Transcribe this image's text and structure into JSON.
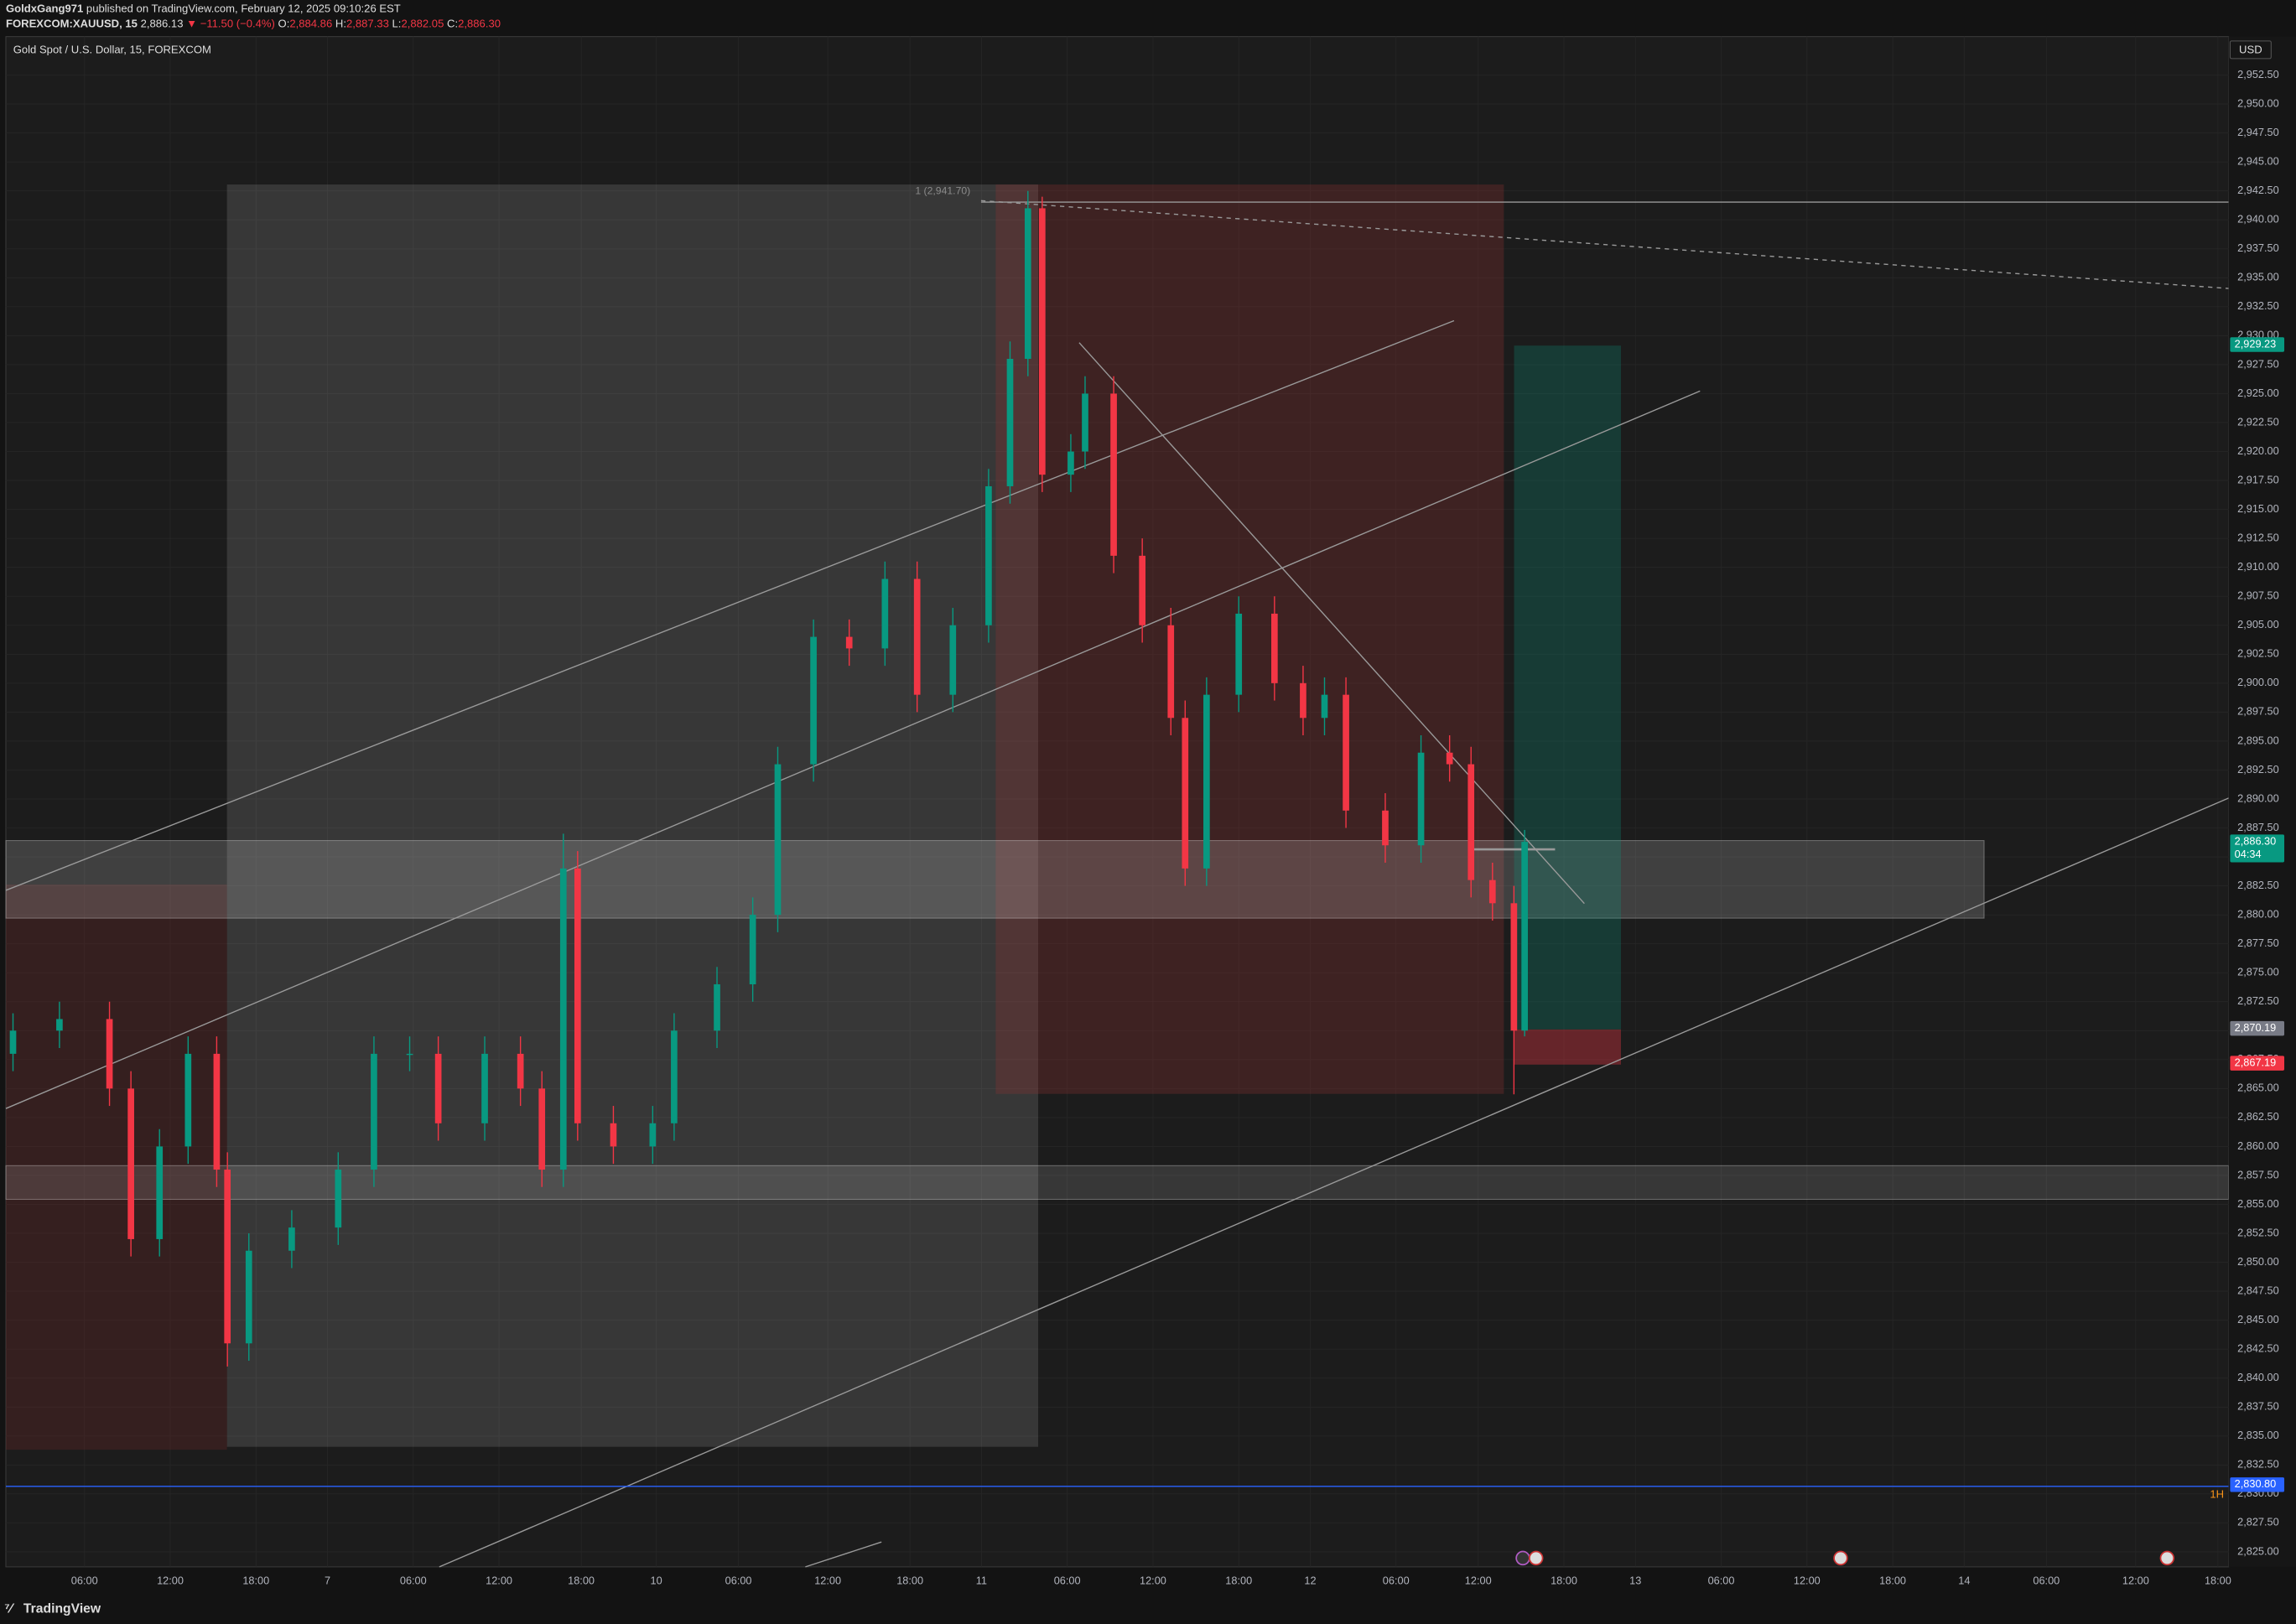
{
  "header": {
    "author": "GoldxGang971",
    "published": "published on TradingView.com, February 12, 2025 09:10:26 EST",
    "symbol": "FOREXCOM:XAUUSD, 15",
    "last": "2,886.13",
    "change": "▼ −11.50 (−0.4%)",
    "ohlc": [
      {
        "key": "O:",
        "value": "2,884.86"
      },
      {
        "key": "H:",
        "value": "2,887.33"
      },
      {
        "key": "L:",
        "value": "2,882.05"
      },
      {
        "key": "C:",
        "value": "2,886.30"
      }
    ]
  },
  "footer": {
    "brand": "TradingView"
  },
  "chart_data": {
    "type": "candlestick",
    "title": "Gold Spot / U.S. Dollar, 15, FOREXCOM",
    "currency": "USD",
    "up_color": "#089981",
    "down_color": "#f23645",
    "grid": true,
    "xlim": [
      0,
      622
    ],
    "ylim": [
      2822.5,
      2955
    ],
    "xticks": [
      {
        "value": 22,
        "label": "06:00"
      },
      {
        "value": 46,
        "label": "12:00"
      },
      {
        "value": 70,
        "label": "18:00"
      },
      {
        "value": 90,
        "label": "7"
      },
      {
        "value": 114,
        "label": "06:00"
      },
      {
        "value": 138,
        "label": "12:00"
      },
      {
        "value": 161,
        "label": "18:00"
      },
      {
        "value": 182,
        "label": "10"
      },
      {
        "value": 205,
        "label": "06:00"
      },
      {
        "value": 230,
        "label": "12:00"
      },
      {
        "value": 253,
        "label": "18:00"
      },
      {
        "value": 273,
        "label": "11"
      },
      {
        "value": 297,
        "label": "06:00"
      },
      {
        "value": 321,
        "label": "12:00"
      },
      {
        "value": 345,
        "label": "18:00"
      },
      {
        "value": 365,
        "label": "12"
      },
      {
        "value": 389,
        "label": "06:00"
      },
      {
        "value": 412,
        "label": "12:00"
      },
      {
        "value": 436,
        "label": "18:00"
      },
      {
        "value": 456,
        "label": "13"
      },
      {
        "value": 480,
        "label": "06:00"
      },
      {
        "value": 504,
        "label": "12:00"
      },
      {
        "value": 528,
        "label": "18:00"
      },
      {
        "value": 548,
        "label": "14"
      },
      {
        "value": 571,
        "label": "06:00"
      },
      {
        "value": 596,
        "label": "12:00"
      },
      {
        "value": 619,
        "label": "18:00"
      }
    ],
    "yticks": [
      {
        "value": 2825,
        "label": "2,825.00"
      },
      {
        "value": 2827.5,
        "label": "2,827.50"
      },
      {
        "value": 2830,
        "label": "2,830.00"
      },
      {
        "value": 2832.5,
        "label": "2,832.50"
      },
      {
        "value": 2835,
        "label": "2,835.00"
      },
      {
        "value": 2837.5,
        "label": "2,837.50"
      },
      {
        "value": 2840,
        "label": "2,840.00"
      },
      {
        "value": 2842.5,
        "label": "2,842.50"
      },
      {
        "value": 2845,
        "label": "2,845.00"
      },
      {
        "value": 2847.5,
        "label": "2,847.50"
      },
      {
        "value": 2850,
        "label": "2,850.00"
      },
      {
        "value": 2852.5,
        "label": "2,852.50"
      },
      {
        "value": 2855,
        "label": "2,855.00"
      },
      {
        "value": 2857.5,
        "label": "2,857.50"
      },
      {
        "value": 2860,
        "label": "2,860.00"
      },
      {
        "value": 2862.5,
        "label": "2,862.50"
      },
      {
        "value": 2865,
        "label": "2,865.00"
      },
      {
        "value": 2867.5,
        "label": "2,867.50"
      },
      {
        "value": 2870,
        "label": "2,870.00"
      },
      {
        "value": 2872.5,
        "label": "2,872.50"
      },
      {
        "value": 2875,
        "label": "2,875.00"
      },
      {
        "value": 2877.5,
        "label": "2,877.50"
      },
      {
        "value": 2880,
        "label": "2,880.00"
      },
      {
        "value": 2882.5,
        "label": "2,882.50"
      },
      {
        "value": 2885,
        "label": "2,885.00"
      },
      {
        "value": 2887.5,
        "label": "2,887.50"
      },
      {
        "value": 2890,
        "label": "2,890.00"
      },
      {
        "value": 2892.5,
        "label": "2,892.50"
      },
      {
        "value": 2895,
        "label": "2,895.00"
      },
      {
        "value": 2897.5,
        "label": "2,897.50"
      },
      {
        "value": 2900,
        "label": "2,900.00"
      },
      {
        "value": 2902.5,
        "label": "2,902.50"
      },
      {
        "value": 2905,
        "label": "2,905.00"
      },
      {
        "value": 2907.5,
        "label": "2,907.50"
      },
      {
        "value": 2910,
        "label": "2,910.00"
      },
      {
        "value": 2912.5,
        "label": "2,912.50"
      },
      {
        "value": 2915,
        "label": "2,915.00"
      },
      {
        "value": 2917.5,
        "label": "2,917.50"
      },
      {
        "value": 2920,
        "label": "2,920.00"
      },
      {
        "value": 2922.5,
        "label": "2,922.50"
      },
      {
        "value": 2925,
        "label": "2,925.00"
      },
      {
        "value": 2927.5,
        "label": "2,927.50"
      },
      {
        "value": 2930,
        "label": "2,930.00"
      },
      {
        "value": 2932.5,
        "label": "2,932.50"
      },
      {
        "value": 2935,
        "label": "2,935.00"
      },
      {
        "value": 2937.5,
        "label": "2,937.50"
      },
      {
        "value": 2940,
        "label": "2,940.00"
      },
      {
        "value": 2942.5,
        "label": "2,942.50"
      },
      {
        "value": 2945,
        "label": "2,945.00"
      },
      {
        "value": 2947.5,
        "label": "2,947.50"
      },
      {
        "value": 2950,
        "label": "2,950.00"
      },
      {
        "value": 2952.5,
        "label": "2,952.50"
      }
    ],
    "x": [
      2,
      15,
      29,
      35,
      43,
      51,
      59,
      62,
      68,
      80,
      93,
      103,
      113,
      121,
      134,
      144,
      150,
      156,
      160,
      170,
      181,
      187,
      199,
      209,
      216,
      226,
      236,
      246,
      255,
      265,
      275,
      281,
      286,
      290,
      298,
      302,
      310,
      318,
      326,
      330,
      336,
      345,
      355,
      363,
      369,
      375,
      386,
      396,
      404,
      410,
      416,
      422,
      425
    ],
    "open": [
      2868,
      2870,
      2871,
      2865,
      2852,
      2860,
      2868,
      2858,
      2843,
      2851,
      2853,
      2858,
      2868,
      2868,
      2862,
      2868,
      2865,
      2858,
      2884,
      2862,
      2860,
      2862,
      2870,
      2874,
      2880,
      2893,
      2904,
      2903,
      2909,
      2899,
      2905,
      2917,
      2928,
      2941,
      2918,
      2920,
      2925,
      2911,
      2905,
      2897,
      2884,
      2899,
      2906,
      2900,
      2897,
      2899,
      2889,
      2886,
      2894,
      2893,
      2883,
      2881,
      2870
    ],
    "high": [
      2871.5,
      2872.5,
      2872.5,
      2866.5,
      2861.5,
      2869.5,
      2869.5,
      2859.5,
      2852.5,
      2854.5,
      2859.5,
      2869.5,
      2869.5,
      2869.5,
      2869.5,
      2869.5,
      2866.5,
      2887,
      2885.5,
      2863.5,
      2863.5,
      2871.5,
      2875.5,
      2881.5,
      2894.5,
      2905.5,
      2905.5,
      2910.5,
      2910.5,
      2906.5,
      2918.5,
      2929.5,
      2942.5,
      2942,
      2921.5,
      2926.5,
      2926.5,
      2912.5,
      2906.5,
      2898.5,
      2900.5,
      2907.5,
      2907.5,
      2901.5,
      2900.5,
      2900.5,
      2890.5,
      2895.5,
      2895.5,
      2894.5,
      2884.5,
      2882.5,
      2887.33
    ],
    "low": [
      2866.5,
      2868.5,
      2863.5,
      2850.5,
      2850.5,
      2858.5,
      2856.5,
      2841,
      2841.5,
      2849.5,
      2851.5,
      2856.5,
      2866.5,
      2860.5,
      2860.5,
      2863.5,
      2856.5,
      2856.5,
      2860.5,
      2858.5,
      2858.5,
      2860.5,
      2868.5,
      2872.5,
      2878.5,
      2891.5,
      2901.5,
      2901.5,
      2897.5,
      2897.5,
      2903.5,
      2915.5,
      2926.5,
      2916.5,
      2916.5,
      2918.5,
      2909.5,
      2903.5,
      2895.5,
      2882.5,
      2882.5,
      2897.5,
      2898.5,
      2895.5,
      2895.5,
      2887.5,
      2884.5,
      2884.5,
      2891.5,
      2881.5,
      2879.5,
      2864.5,
      2869.5
    ],
    "close": [
      2870,
      2871,
      2865,
      2852,
      2860,
      2868,
      2858,
      2843,
      2851,
      2853,
      2858,
      2868,
      2868,
      2862,
      2868,
      2865,
      2858,
      2884,
      2862,
      2860,
      2862,
      2870,
      2874,
      2880,
      2893,
      2904,
      2903,
      2909,
      2899,
      2905,
      2917,
      2928,
      2941,
      2918,
      2920,
      2925,
      2911,
      2905,
      2897,
      2884,
      2899,
      2906,
      2900,
      2897,
      2899,
      2889,
      2886,
      2894,
      2893,
      2883,
      2881,
      2870,
      2886.3
    ],
    "price_labels": [
      {
        "value": 2929.23,
        "label": "2,929.23",
        "color": "#089981"
      },
      {
        "value": 2886.3,
        "label": "2,886.30",
        "sub": "04:34",
        "color": "#089981"
      },
      {
        "value": 2870.19,
        "label": "2,870.19",
        "color": "#787b86"
      },
      {
        "value": 2867.19,
        "label": "2,867.19",
        "color": "#f23645"
      },
      {
        "value": 2830.8,
        "label": "2,830.80",
        "color": "#2962ff"
      }
    ],
    "annotations": [
      {
        "value": 2941.7,
        "label": "1 (2,941.70)"
      }
    ],
    "interval_badge": "1H"
  }
}
